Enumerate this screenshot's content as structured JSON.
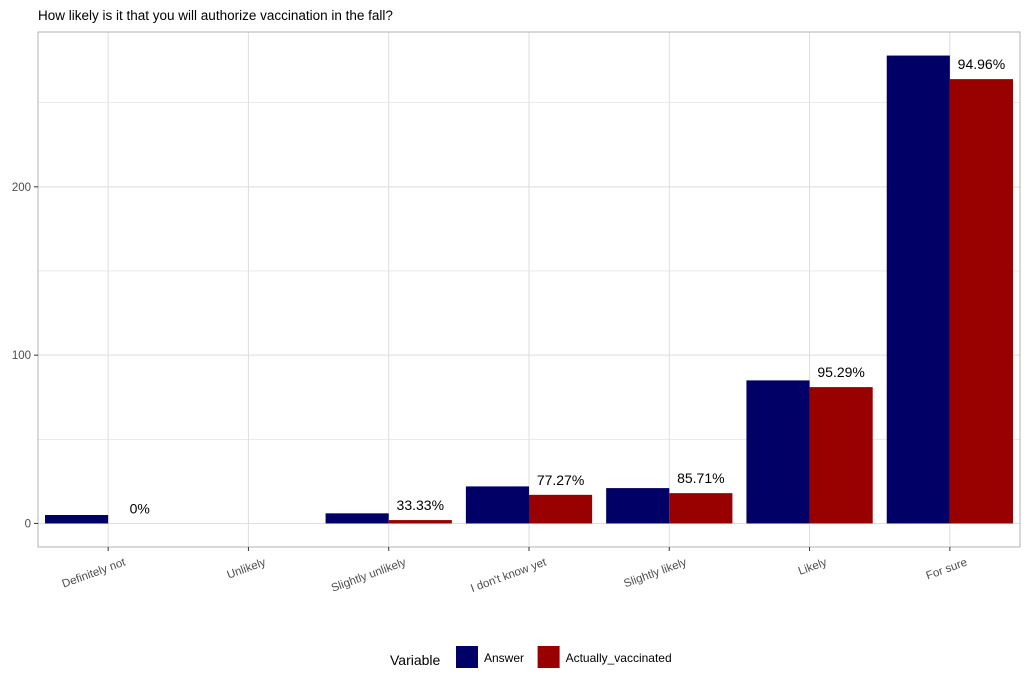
{
  "chart_data": {
    "type": "bar",
    "title": "How likely is it that you will authorize vaccination in the fall?",
    "xlabel": "",
    "ylabel": "",
    "categories": [
      "Definitely not",
      "Unlikely",
      "Slightly unlikely",
      "I don't know yet",
      "Slightly likely",
      "Likely",
      "For sure"
    ],
    "series": [
      {
        "name": "Answer",
        "color": "#000066",
        "values": [
          5,
          0,
          6,
          22,
          21,
          85,
          278
        ]
      },
      {
        "name": "Actually_vaccinated",
        "color": "#990000",
        "values": [
          0,
          0,
          2,
          17,
          18,
          81,
          264
        ]
      }
    ],
    "bar_labels": [
      "0%",
      "",
      "33.33%",
      "77.27%",
      "85.71%",
      "95.29%",
      "94.96%"
    ],
    "ylim": [
      -14,
      292
    ],
    "yticks": [
      0,
      100,
      200
    ],
    "grid": true,
    "legend": {
      "title": "Variable",
      "position": "bottom"
    }
  }
}
